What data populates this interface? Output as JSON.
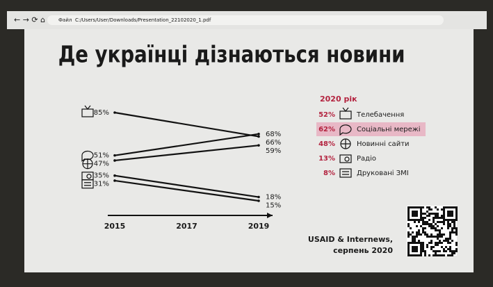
{
  "browser": {
    "file_label": "Файл",
    "path": "C:/Users/User/Downloads/Presentation_22102020_1.pdf"
  },
  "chart_data": {
    "type": "slope",
    "title": "Де українці дізнаються новини",
    "x": [
      2015,
      2019
    ],
    "xlim": [
      2015,
      2019
    ],
    "xticks": [
      2015,
      2017,
      2019
    ],
    "series": [
      {
        "name": "Телебачення",
        "color": "#111111",
        "values": [
          85,
          66
        ],
        "value_labels": [
          "85%",
          "66%"
        ]
      },
      {
        "name": "Соціальні мережі",
        "color": "#111111",
        "values": [
          51,
          68
        ],
        "value_labels": [
          "51%",
          "68%"
        ]
      },
      {
        "name": "Новинні сайти",
        "color": "#111111",
        "values": [
          47,
          59
        ],
        "value_labels": [
          "47%",
          "59%"
        ]
      },
      {
        "name": "Радіо",
        "color": "#111111",
        "values": [
          35,
          18
        ],
        "value_labels": [
          "35%",
          "18%"
        ]
      },
      {
        "name": "Друковані ЗМІ",
        "color": "#111111",
        "values": [
          31,
          15
        ],
        "value_labels": [
          "31%",
          "15%"
        ]
      }
    ]
  },
  "panel": {
    "title": "2020 рік",
    "highlight_row": 1,
    "rows": [
      {
        "value": "52%",
        "label": "Телебачення"
      },
      {
        "value": "62%",
        "label": "Соціальні мережі"
      },
      {
        "value": "48%",
        "label": "Новинні сайти"
      },
      {
        "value": "13%",
        "label": "Радіо"
      },
      {
        "value": "8%",
        "label": "Друковані ЗМІ"
      }
    ]
  },
  "source": {
    "line1": "USAID & Internews,",
    "line2": "серпень 2020"
  }
}
